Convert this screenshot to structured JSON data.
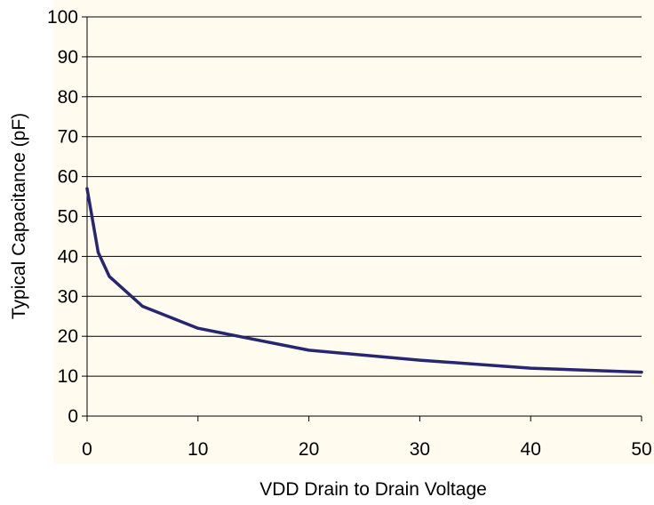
{
  "chart_data": {
    "type": "line",
    "title": "",
    "xlabel": "VDD Drain to Drain Voltage",
    "ylabel": "Typical Capacitance (pF)",
    "xlim": [
      0,
      50
    ],
    "ylim": [
      0,
      100
    ],
    "x_ticks": [
      0,
      10,
      20,
      30,
      40,
      50
    ],
    "y_ticks": [
      0,
      10,
      20,
      30,
      40,
      50,
      60,
      70,
      80,
      90,
      100
    ],
    "grid": "horizontal",
    "colors": {
      "line": "#262673",
      "plot_background": "#fffbef",
      "gridline": "#000000"
    },
    "series": [
      {
        "x": [
          0,
          1,
          2,
          5,
          10,
          20,
          30,
          40,
          50
        ],
        "values": [
          57,
          41,
          35,
          27.5,
          22,
          16.5,
          14,
          12,
          11
        ]
      }
    ]
  }
}
